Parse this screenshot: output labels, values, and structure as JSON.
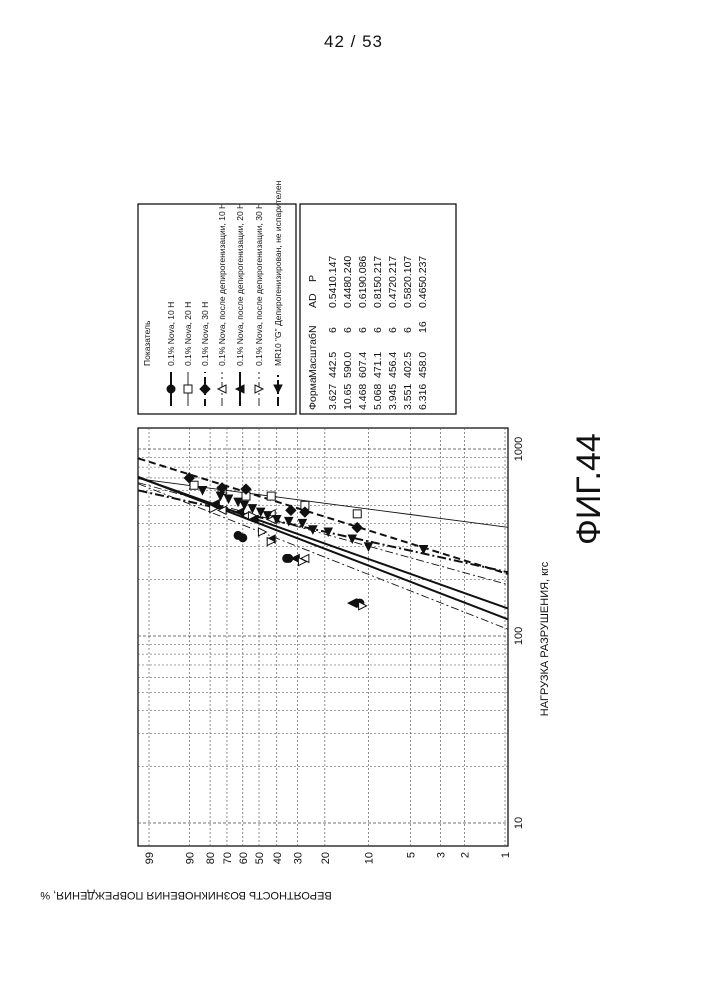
{
  "page_number": "42 / 53",
  "figure_label": "ФИГ.44",
  "chart_data": {
    "type": "scatter",
    "scale": "weibull-probability",
    "xlabel": "НАГРУЗКА РАЗРУШЕНИЯ, кгс",
    "ylabel": "ВЕРОЯТНОСТЬ ВОЗНИКНОВЕНИЯ ПОВРЕЖДЕНИЯ, %",
    "xlim": [
      8,
      1300
    ],
    "ylim": [
      1,
      99
    ],
    "x_scale": "log",
    "x_ticks": [
      "10",
      "100",
      "1000"
    ],
    "y_ticks": [
      "99",
      "90",
      "80",
      "70",
      "60",
      "50",
      "40",
      "30",
      "20",
      "10",
      "5",
      "3",
      "2",
      "1"
    ],
    "grid": true,
    "legend": {
      "title": "Показатель",
      "placement": "right",
      "columns": [
        "Форма",
        "Масштаб",
        "N",
        "AD",
        "P"
      ]
    },
    "series": [
      {
        "name": "0.1% Nova, 10 H",
        "marker": "circle-filled",
        "line": "solid-thick",
        "color": "#111111",
        "shape": "3.627",
        "scale": "442.5",
        "N": "6",
        "AD": "0.541",
        "P": "0.147",
        "points": [
          [
            150,
            12
          ],
          [
            150,
            11.5
          ],
          [
            260,
            35
          ],
          [
            260,
            34
          ],
          [
            335,
            60
          ],
          [
            345,
            63
          ]
        ]
      },
      {
        "name": "0.1% Nova, 20 H",
        "marker": "square-open",
        "line": "solid-thin",
        "color": "#111111",
        "shape": "10.65",
        "scale": "590.0",
        "N": "6",
        "AD": "0.448",
        "P": "0.240",
        "points": [
          [
            450,
            12
          ],
          [
            500,
            27
          ],
          [
            560,
            43
          ],
          [
            560,
            58
          ],
          [
            600,
            73
          ],
          [
            640,
            88
          ]
        ]
      },
      {
        "name": "0.1% Nova, 30 H",
        "marker": "diamond-filled",
        "line": "dash-thick",
        "color": "#111111",
        "shape": "4.468",
        "scale": "607.4",
        "N": "6",
        "AD": "0.619",
        "P": "0.086",
        "points": [
          [
            380,
            12
          ],
          [
            460,
            27
          ],
          [
            470,
            33
          ],
          [
            610,
            58
          ],
          [
            620,
            73
          ],
          [
            700,
            90
          ]
        ]
      },
      {
        "name": "0.1% Nova, после депирогенизации, 10 H",
        "marker": "triangle-up-open",
        "line": "dashdot-thin",
        "color": "#111111",
        "shape": "5.068",
        "scale": "471.1",
        "N": "6",
        "AD": "0.815",
        "P": "0.217",
        "points": [
          [
            150,
            13
          ],
          [
            260,
            27
          ],
          [
            420,
            43
          ],
          [
            450,
            43
          ],
          [
            440,
            58
          ],
          [
            470,
            73
          ]
        ]
      },
      {
        "name": "0.1% Nova, после депирогенизации, 20 H",
        "marker": "triangle-up-filled",
        "line": "solid-thick",
        "color": "#111111",
        "shape": "3.945",
        "scale": "456.4",
        "N": "6",
        "AD": "0.472",
        "P": "0.217",
        "points": [
          [
            150,
            13
          ],
          [
            260,
            31
          ],
          [
            330,
            43
          ],
          [
            420,
            53
          ],
          [
            460,
            62
          ],
          [
            510,
            77
          ]
        ]
      },
      {
        "name": "0.1% Nova, после депирогенизации, 30 H",
        "marker": "triangle-down-open",
        "line": "dashdot-thin",
        "color": "#111111",
        "shape": "3.551",
        "scale": "402.5",
        "N": "6",
        "AD": "0.582",
        "P": "0.107",
        "points": [
          [
            145,
            11
          ],
          [
            250,
            28
          ],
          [
            320,
            43
          ],
          [
            360,
            48
          ],
          [
            440,
            54
          ],
          [
            480,
            78
          ]
        ]
      },
      {
        "name": "MR10 \"G\" Депирогенизирован, не испарителен",
        "marker": "triangle-right-filled",
        "line": "dashdot-thick",
        "color": "#111111",
        "shape": "6.316",
        "scale": "458.0",
        "N": "16",
        "AD": "0.465",
        "P": "0.237",
        "points": [
          [
            290,
            4
          ],
          [
            300,
            10
          ],
          [
            330,
            13
          ],
          [
            360,
            19
          ],
          [
            370,
            24
          ],
          [
            400,
            28
          ],
          [
            410,
            34
          ],
          [
            420,
            40
          ],
          [
            440,
            45
          ],
          [
            460,
            49
          ],
          [
            480,
            54
          ],
          [
            500,
            59
          ],
          [
            520,
            63
          ],
          [
            540,
            69
          ],
          [
            560,
            74
          ],
          [
            600,
            84
          ]
        ]
      }
    ]
  }
}
